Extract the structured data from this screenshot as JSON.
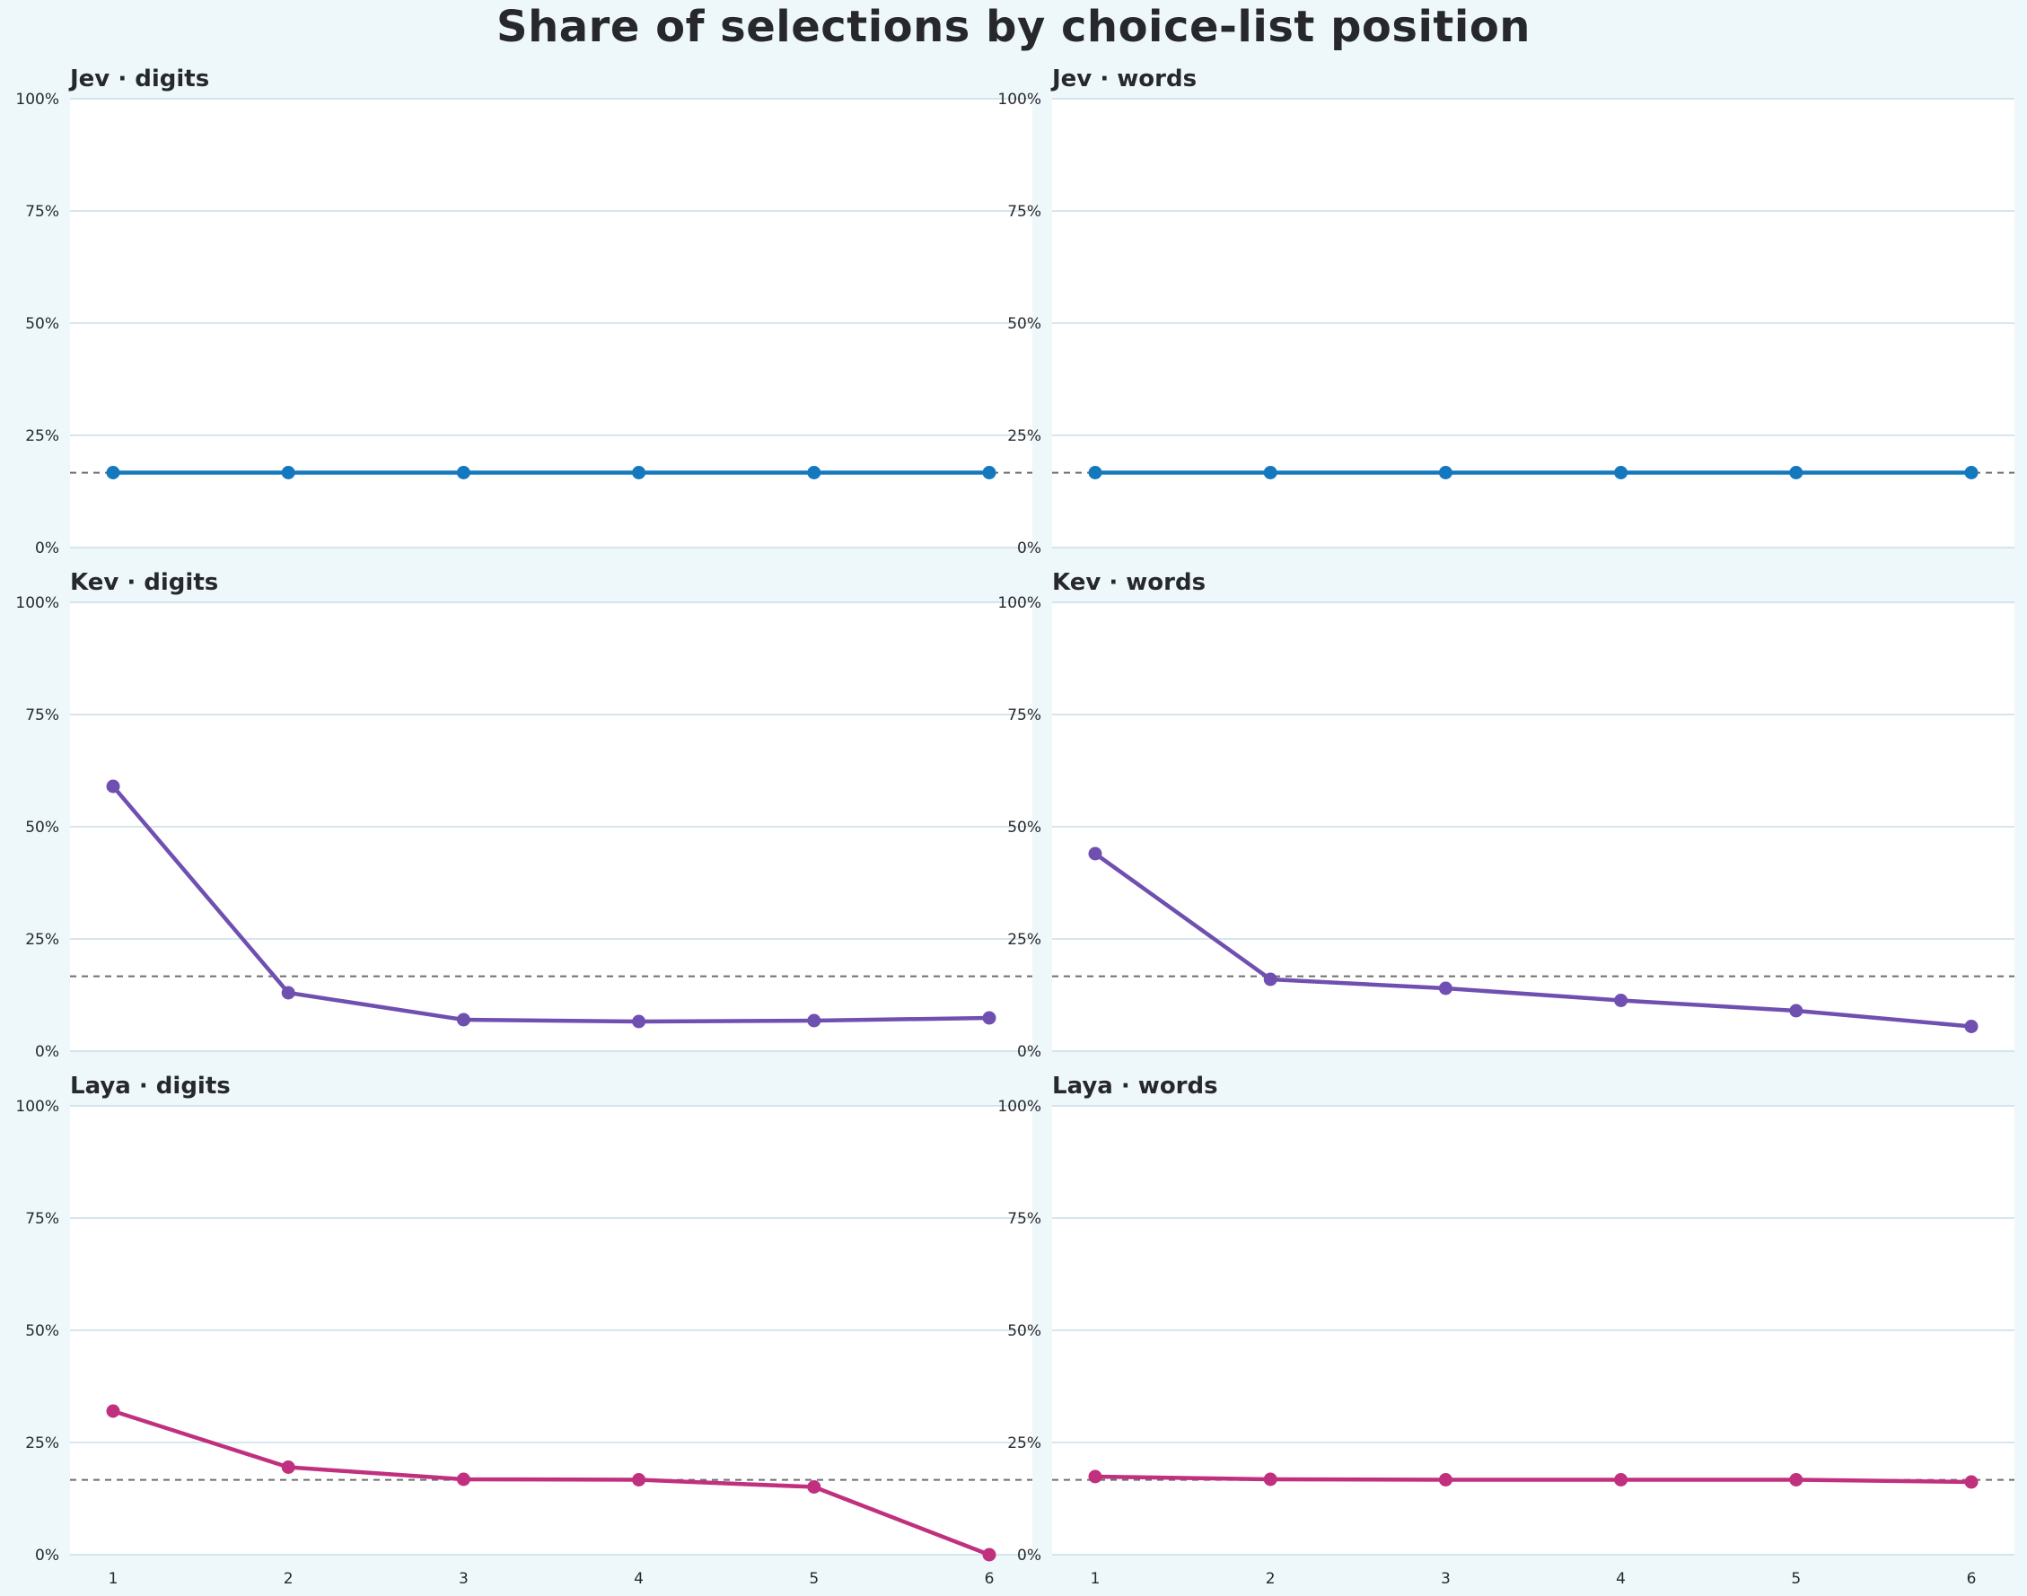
{
  "title": "Share of selections by choice-list position",
  "colors": {
    "background": "#eef8fb",
    "panel": "#ffffff",
    "grid": "#c9dee6",
    "reference_line": "#6e6e6e",
    "text": "#26282c",
    "Jev": "#1478be",
    "Kev": "#6f4fb0",
    "Laya": "#c0307e"
  },
  "chart_data": [
    {
      "type": "line",
      "row": "Jev",
      "column": "digits",
      "title_left": "Jev",
      "title_right": "digits",
      "x": [
        1,
        2,
        3,
        4,
        5,
        6
      ],
      "values": [
        16.7,
        16.7,
        16.7,
        16.7,
        16.7,
        16.7
      ],
      "reference": 16.67,
      "ylim": [
        0,
        100
      ],
      "yticks": [
        "0%",
        "25%",
        "50%",
        "75%",
        "100%"
      ]
    },
    {
      "type": "line",
      "row": "Jev",
      "column": "words",
      "title_left": "Jev",
      "title_right": "words",
      "x": [
        1,
        2,
        3,
        4,
        5,
        6
      ],
      "values": [
        16.7,
        16.7,
        16.7,
        16.7,
        16.7,
        16.7
      ],
      "reference": 16.67,
      "ylim": [
        0,
        100
      ],
      "yticks": [
        "0%",
        "25%",
        "50%",
        "75%",
        "100%"
      ]
    },
    {
      "type": "line",
      "row": "Kev",
      "column": "digits",
      "title_left": "Kev",
      "title_right": "digits",
      "x": [
        1,
        2,
        3,
        4,
        5,
        6
      ],
      "values": [
        59.0,
        13.0,
        7.0,
        6.6,
        6.8,
        7.4
      ],
      "reference": 16.67,
      "ylim": [
        0,
        100
      ],
      "yticks": [
        "0%",
        "25%",
        "50%",
        "75%",
        "100%"
      ]
    },
    {
      "type": "line",
      "row": "Kev",
      "column": "words",
      "title_left": "Kev",
      "title_right": "words",
      "x": [
        1,
        2,
        3,
        4,
        5,
        6
      ],
      "values": [
        44.0,
        16.0,
        14.0,
        11.3,
        9.0,
        5.5
      ],
      "reference": 16.67,
      "ylim": [
        0,
        100
      ],
      "yticks": [
        "0%",
        "25%",
        "50%",
        "75%",
        "100%"
      ]
    },
    {
      "type": "line",
      "row": "Laya",
      "column": "digits",
      "title_left": "Laya",
      "title_right": "digits",
      "x": [
        1,
        2,
        3,
        4,
        5,
        6
      ],
      "values": [
        32.0,
        19.5,
        16.8,
        16.7,
        15.1,
        0.0
      ],
      "reference": 16.67,
      "ylim": [
        0,
        100
      ],
      "yticks": [
        "0%",
        "25%",
        "50%",
        "75%",
        "100%"
      ],
      "xticks": [
        "1",
        "2",
        "3",
        "4",
        "5",
        "6"
      ]
    },
    {
      "type": "line",
      "row": "Laya",
      "column": "words",
      "title_left": "Laya",
      "title_right": "words",
      "x": [
        1,
        2,
        3,
        4,
        5,
        6
      ],
      "values": [
        17.4,
        16.8,
        16.7,
        16.7,
        16.7,
        16.2
      ],
      "reference": 16.67,
      "ylim": [
        0,
        100
      ],
      "yticks": [
        "0%",
        "25%",
        "50%",
        "75%",
        "100%"
      ],
      "xticks": [
        "1",
        "2",
        "3",
        "4",
        "5",
        "6"
      ]
    }
  ]
}
